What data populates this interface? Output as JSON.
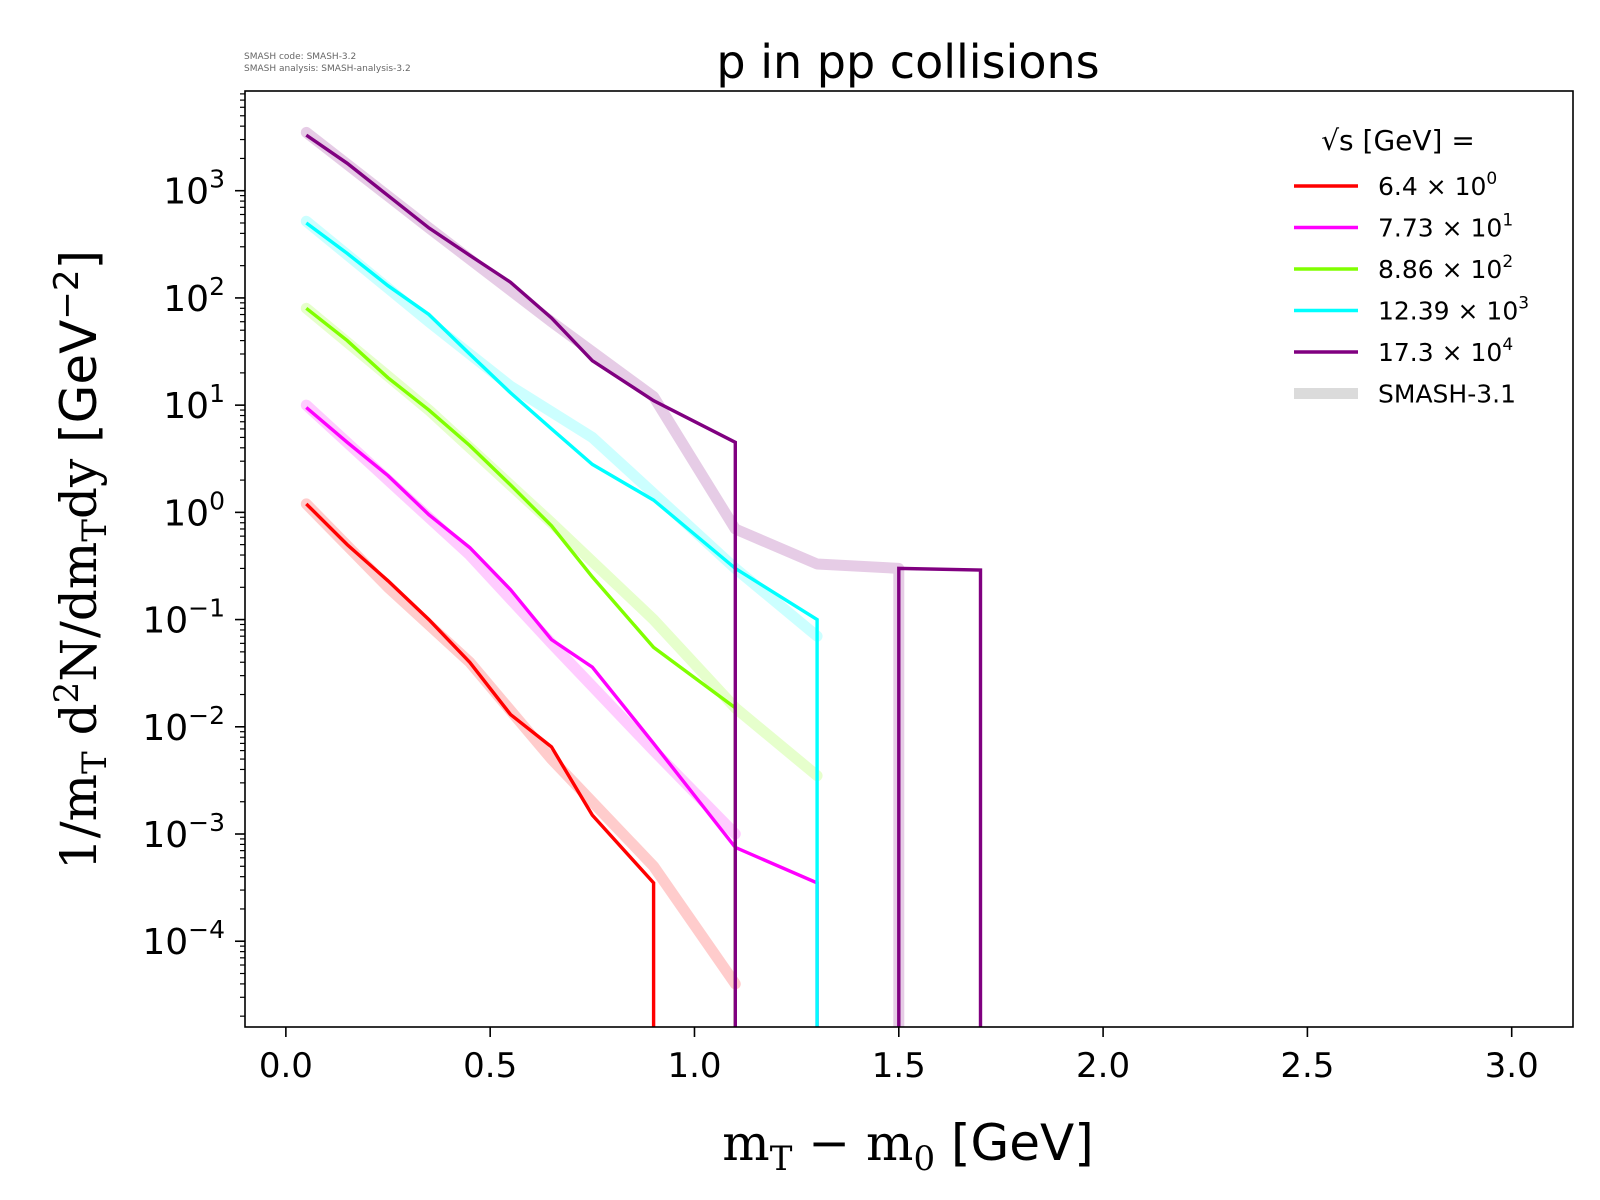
{
  "header": {
    "code_line": "SMASH code:      SMASH-3.2",
    "analysis_line": "SMASH analysis: SMASH-analysis-3.2"
  },
  "chart_data": {
    "type": "line",
    "title": "p in pp collisions",
    "xlabel": "m_T − m_0 [GeV]",
    "ylabel": "1/m_T d²N/dm_T dy [GeV⁻²]",
    "xlim": [
      -0.1,
      3.15
    ],
    "ylim_log10": [
      -4.8,
      3.93
    ],
    "y_scale": "log",
    "grid": false,
    "x_ticks": [
      0.0,
      0.5,
      1.0,
      1.5,
      2.0,
      2.5,
      3.0
    ],
    "x_tick_labels": [
      "0.0",
      "0.5",
      "1.0",
      "1.5",
      "2.0",
      "2.5",
      "3.0"
    ],
    "y_ticks_exp": [
      -4,
      -3,
      -2,
      -1,
      0,
      1,
      2,
      3
    ],
    "legend": {
      "placement": "top-right",
      "title": "√s  [GeV] =",
      "reference_label": "SMASH-3.1"
    },
    "series": [
      {
        "name": "6.4 × 10⁰",
        "label_mantissa": "6.4",
        "label_exp": "0",
        "color": "#ff0000",
        "x": [
          0.05,
          0.15,
          0.25,
          0.35,
          0.45,
          0.55,
          0.65,
          0.75,
          0.9,
          0.9
        ],
        "y": [
          1.2,
          0.5,
          0.23,
          0.1,
          0.04,
          0.013,
          0.0065,
          0.0015,
          0.00035,
          1e-06
        ],
        "reference": {
          "x": [
            0.05,
            0.25,
            0.45,
            0.65,
            0.9,
            1.1
          ],
          "y": [
            1.2,
            0.2,
            0.04,
            0.005,
            0.0005,
            4e-05
          ]
        }
      },
      {
        "name": "7.73 × 10¹",
        "label_mantissa": "7.73",
        "label_exp": "1",
        "color": "#ff00ff",
        "x": [
          0.05,
          0.15,
          0.25,
          0.35,
          0.45,
          0.55,
          0.65,
          0.75,
          0.9,
          1.1,
          1.3,
          1.3
        ],
        "y": [
          9.5,
          4.5,
          2.2,
          0.95,
          0.47,
          0.19,
          0.065,
          0.036,
          0.007,
          0.00075,
          0.00035,
          1e-06
        ],
        "reference": {
          "x": [
            0.05,
            0.25,
            0.45,
            0.65,
            0.9,
            1.1
          ],
          "y": [
            10,
            2,
            0.4,
            0.06,
            0.006,
            0.001
          ]
        }
      },
      {
        "name": "8.86 × 10²",
        "label_mantissa": "8.86",
        "label_exp": "2",
        "color": "#80ff00",
        "x": [
          0.05,
          0.15,
          0.25,
          0.35,
          0.45,
          0.55,
          0.65,
          0.75,
          0.9,
          1.1,
          1.1
        ],
        "y": [
          80,
          40,
          18,
          9,
          4.2,
          1.8,
          0.75,
          0.25,
          0.055,
          0.015,
          1e-06
        ],
        "reference": {
          "x": [
            0.05,
            0.35,
            0.65,
            0.9,
            1.1,
            1.3
          ],
          "y": [
            80,
            9,
            0.8,
            0.1,
            0.015,
            0.0035
          ]
        }
      },
      {
        "name": "12.39 × 10³",
        "label_mantissa": "12.39",
        "label_exp": "3",
        "color": "#00ffff",
        "x": [
          0.05,
          0.15,
          0.25,
          0.35,
          0.45,
          0.55,
          0.65,
          0.75,
          0.9,
          1.1,
          1.3,
          1.3
        ],
        "y": [
          500,
          260,
          130,
          70,
          30,
          13,
          6,
          2.8,
          1.3,
          0.3,
          0.1,
          1e-06
        ],
        "reference": {
          "x": [
            0.05,
            0.35,
            0.55,
            0.75,
            0.9,
            1.1,
            1.3
          ],
          "y": [
            520,
            60,
            15,
            5,
            1.5,
            0.3,
            0.07
          ]
        }
      },
      {
        "name": "17.3 × 10⁴",
        "label_mantissa": "17.3",
        "label_exp": "4",
        "color": "#800080",
        "x": [
          0.05,
          0.15,
          0.25,
          0.35,
          0.45,
          0.55,
          0.65,
          0.75,
          0.9,
          1.1,
          1.1,
          1.1,
          1.5,
          1.5,
          1.5,
          1.7,
          1.7
        ],
        "y": [
          3300,
          1800,
          900,
          450,
          250,
          140,
          65,
          26,
          11,
          4.5,
          1e-06,
          1e-06,
          1e-06,
          0.3,
          0.3,
          0.29,
          1e-06
        ],
        "reference": {
          "x": [
            0.05,
            0.35,
            0.65,
            0.9,
            1.1,
            1.3,
            1.5,
            1.5
          ],
          "y": [
            3500,
            450,
            60,
            12,
            0.7,
            0.33,
            0.3,
            1e-06
          ]
        }
      }
    ]
  }
}
